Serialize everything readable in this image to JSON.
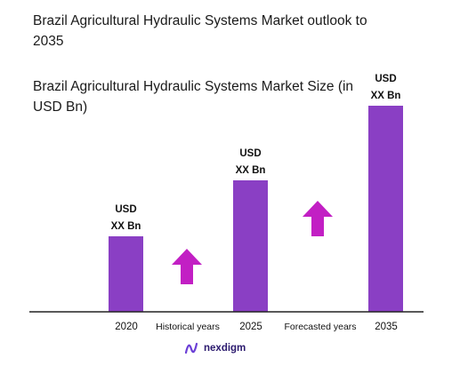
{
  "chart_data": {
    "type": "bar",
    "title": "Brazil Agricultural Hydraulic Systems Market outlook to 2035",
    "subtitle": "Brazil Agricultural Hydraulic Systems Market Size (in USD Bn)",
    "categories": [
      "2020",
      "2025",
      "2035"
    ],
    "values": [
      85,
      148,
      232
    ],
    "value_labels": [
      [
        "USD",
        "XX Bn"
      ],
      [
        "USD",
        "XX Bn"
      ],
      [
        "USD",
        "XX Bn"
      ]
    ],
    "period_labels": [
      "Historical years",
      "Forecasted years"
    ],
    "bar_color": "#8a3fc4",
    "arrow_color": "#c21fc4",
    "axis_color": "#222222",
    "grid": false,
    "legend": "none"
  },
  "brand": {
    "name": "nexdigm",
    "icon": "nexdigm-logo-icon",
    "icon_color": "#6b3fd6"
  }
}
